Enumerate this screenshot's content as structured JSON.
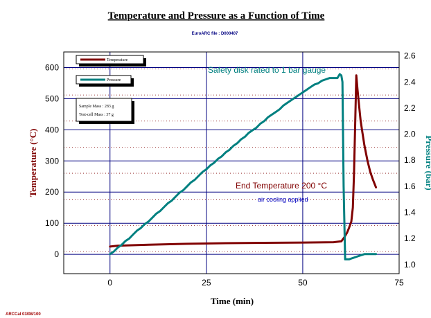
{
  "chart_data": {
    "type": "line",
    "title": "Temperature and Pressure as a Function of Time",
    "subtitle": "EuroARC file : D000407",
    "xlabel": "Time (min)",
    "ylabel": "Temperature (°C)",
    "y2label": "Pressure (bar)",
    "xlim": [
      -12,
      75
    ],
    "ylim": [
      -62,
      650
    ],
    "y2lim": [
      0.93,
      2.63
    ],
    "x_ticks": [
      0,
      25,
      50,
      75
    ],
    "y_ticks": [
      0,
      100,
      200,
      300,
      400,
      500,
      600
    ],
    "y2_ticks": [
      1.0,
      1.2,
      1.4,
      1.6,
      1.8,
      2.0,
      2.2,
      2.4,
      2.6
    ],
    "grid": true,
    "series": [
      {
        "name": "Temperature",
        "axis": "left",
        "color": "#800000",
        "x": [
          0,
          2,
          10,
          20,
          30,
          40,
          50,
          58,
          60,
          60.8,
          61.5,
          62,
          62.6,
          63,
          63.3,
          63.6,
          63.9,
          64.2,
          64.6,
          65.0,
          65.5,
          66.0,
          66.8,
          67.5,
          68.2,
          69.0
        ],
        "y": [
          25,
          28,
          31,
          34,
          36,
          37,
          38,
          39,
          42,
          55,
          70,
          85,
          105,
          150,
          260,
          420,
          575,
          530,
          480,
          430,
          390,
          350,
          300,
          265,
          240,
          215
        ]
      },
      {
        "name": "Pressure",
        "axis": "right",
        "color": "#008080",
        "x": [
          0,
          1,
          2,
          3,
          4,
          5,
          6,
          7,
          8,
          9,
          10,
          11,
          12,
          13,
          14,
          15,
          16,
          17,
          18,
          19,
          20,
          21,
          22,
          23,
          24,
          25,
          26,
          27,
          28,
          29,
          30,
          31,
          32,
          33,
          34,
          35,
          36,
          37,
          38,
          39,
          40,
          41,
          42,
          43,
          44,
          45,
          46,
          47,
          48,
          49,
          50,
          51,
          52,
          53,
          54,
          55,
          56,
          57,
          58,
          59,
          59.6,
          60.0,
          60.3,
          60.6,
          61.0,
          62.0,
          63.0,
          64.0,
          65.0,
          66.0,
          67.0,
          68.0,
          69.0
        ],
        "y": [
          1.08,
          1.1,
          1.13,
          1.15,
          1.18,
          1.2,
          1.23,
          1.26,
          1.28,
          1.31,
          1.33,
          1.36,
          1.39,
          1.41,
          1.44,
          1.47,
          1.49,
          1.52,
          1.55,
          1.57,
          1.6,
          1.63,
          1.65,
          1.68,
          1.71,
          1.73,
          1.76,
          1.78,
          1.81,
          1.83,
          1.86,
          1.88,
          1.91,
          1.93,
          1.96,
          1.98,
          2.01,
          2.03,
          2.05,
          2.08,
          2.1,
          2.13,
          2.15,
          2.17,
          2.19,
          2.22,
          2.24,
          2.26,
          2.28,
          2.3,
          2.32,
          2.34,
          2.36,
          2.38,
          2.39,
          2.41,
          2.42,
          2.43,
          2.43,
          2.43,
          2.46,
          2.45,
          2.4,
          1.6,
          1.04,
          1.04,
          1.05,
          1.06,
          1.07,
          1.08,
          1.08,
          1.08,
          1.08
        ]
      }
    ],
    "legend": {
      "placement": "top-left"
    },
    "info_box": [
      "Sample Mass : 283 g",
      "Test-cell Mass : 37 g"
    ],
    "annotations": [
      {
        "text": "Safety disk rated to 1 bar gauge",
        "color": "#008080"
      },
      {
        "text": "End Temperature 200 °C",
        "color": "#800000"
      },
      {
        "text": "air cooling applied",
        "color": "#0000c0"
      }
    ],
    "footer": "ARCCal 03/08/100",
    "colors": {
      "grid_major": "#000080",
      "grid_minor": "#800000",
      "title": "#000000",
      "subtitle": "#000080"
    }
  }
}
